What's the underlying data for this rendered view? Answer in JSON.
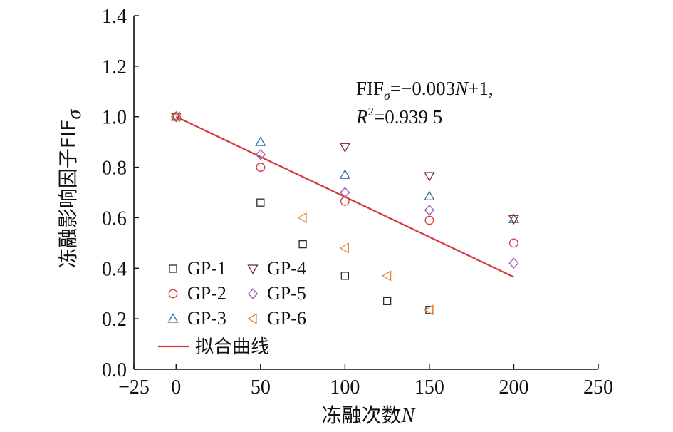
{
  "chart_data": {
    "type": "scatter",
    "xlabel": "冻融次数",
    "xlabel_var": "N",
    "ylabel": "冻融影响因子FIF",
    "ylabel_sub": "σ",
    "xlim": [
      -25,
      250
    ],
    "ylim": [
      0.0,
      1.4
    ],
    "x_ticks": [
      -25,
      0,
      50,
      100,
      150,
      200,
      250
    ],
    "x_tick_labels": [
      "−25",
      "0",
      "50",
      "100",
      "150",
      "200",
      "250"
    ],
    "y_ticks": [
      0.0,
      0.2,
      0.4,
      0.6,
      0.8,
      1.0,
      1.2,
      1.4
    ],
    "y_tick_labels": [
      "0.0",
      "0.2",
      "0.4",
      "0.6",
      "0.8",
      "1.0",
      "1.2",
      "1.4"
    ],
    "series": [
      {
        "name": "GP-1",
        "marker": "square",
        "color": "#2b2b2b",
        "points": [
          [
            0,
            1.0
          ],
          [
            50,
            0.66
          ],
          [
            75,
            0.495
          ],
          [
            100,
            0.37
          ],
          [
            125,
            0.27
          ],
          [
            150,
            0.235
          ]
        ]
      },
      {
        "name": "GP-2",
        "marker": "circle",
        "color": "#d9363e",
        "points": [
          [
            0,
            1.0
          ],
          [
            50,
            0.8
          ],
          [
            100,
            0.665
          ],
          [
            150,
            0.59
          ],
          [
            200,
            0.5
          ]
        ]
      },
      {
        "name": "GP-3",
        "marker": "triangle-up",
        "color": "#3a6ea5",
        "points": [
          [
            0,
            1.0
          ],
          [
            50,
            0.9
          ],
          [
            100,
            0.77
          ],
          [
            150,
            0.685
          ],
          [
            200,
            0.595
          ]
        ]
      },
      {
        "name": "GP-4",
        "marker": "triangle-down",
        "color": "#7a2626",
        "points": [
          [
            0,
            1.0
          ],
          [
            100,
            0.88
          ],
          [
            150,
            0.765
          ],
          [
            200,
            0.595
          ]
        ]
      },
      {
        "name": "GP-5",
        "marker": "diamond",
        "color": "#9b59b6",
        "points": [
          [
            0,
            1.0
          ],
          [
            50,
            0.85
          ],
          [
            100,
            0.7
          ],
          [
            150,
            0.63
          ],
          [
            200,
            0.42
          ]
        ]
      },
      {
        "name": "GP-6",
        "marker": "triangle-left",
        "color": "#e88a3a",
        "points": [
          [
            0,
            1.0
          ],
          [
            75,
            0.6
          ],
          [
            100,
            0.48
          ],
          [
            125,
            0.37
          ],
          [
            150,
            0.235
          ]
        ]
      }
    ],
    "fit_line": {
      "name": "拟合曲线",
      "color": "#d9363e",
      "x_range": [
        0,
        200
      ],
      "slope": -0.003174,
      "intercept": 1.0
    },
    "equation": {
      "lhs": "FIF",
      "lhs_sub": "σ",
      "rhs": "=−0.003",
      "var": "N",
      "tail": "+1,",
      "r2_label": "R",
      "r2_sup": "2",
      "r2_value": "=0.939 5"
    },
    "grid": false,
    "legend_position": "bottom-left"
  }
}
